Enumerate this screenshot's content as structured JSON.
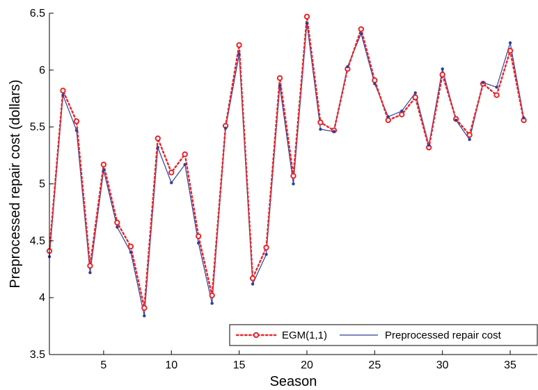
{
  "chart_data": {
    "type": "line",
    "title": "",
    "xlabel": "Season",
    "ylabel": "Preprocessed repair cost (dollars)",
    "xlim": [
      1,
      37
    ],
    "ylim": [
      3.5,
      6.5
    ],
    "xticks": [
      5,
      10,
      15,
      20,
      25,
      30,
      35
    ],
    "xtick_labels": [
      "5",
      "10",
      "15",
      "20",
      "25",
      "30",
      "35"
    ],
    "yticks": [
      3.5,
      4,
      4.5,
      5,
      5.5,
      6,
      6.5
    ],
    "ytick_labels": [
      "3.5",
      "4",
      "4.5",
      "5",
      "5.5",
      "6",
      "6.5"
    ],
    "grid": false,
    "legend_position": "bottom-right",
    "x": [
      1,
      2,
      3,
      4,
      5,
      6,
      7,
      8,
      9,
      10,
      11,
      12,
      13,
      14,
      15,
      16,
      17,
      18,
      19,
      20,
      21,
      22,
      23,
      24,
      25,
      26,
      27,
      28,
      29,
      30,
      31,
      32,
      33,
      34,
      35,
      36
    ],
    "series": [
      {
        "name": "EGM(1,1)",
        "color": "#e8262a",
        "style": "dotted-with-circle-markers",
        "values": [
          4.41,
          5.82,
          5.55,
          4.28,
          5.17,
          4.66,
          4.45,
          3.91,
          5.4,
          5.1,
          5.26,
          4.54,
          4.02,
          5.51,
          6.22,
          4.17,
          4.44,
          5.93,
          5.07,
          6.47,
          5.54,
          5.47,
          6.01,
          6.36,
          5.91,
          5.56,
          5.61,
          5.76,
          5.32,
          5.96,
          5.57,
          5.43,
          5.88,
          5.78,
          6.17,
          5.56
        ]
      },
      {
        "name": "Preprocessed repair cost",
        "color": "#2e3f9e",
        "style": "solid-with-dot-markers",
        "values": [
          4.36,
          5.78,
          5.47,
          4.22,
          5.12,
          4.62,
          4.4,
          3.84,
          5.32,
          5.01,
          5.17,
          4.48,
          3.95,
          5.49,
          6.14,
          4.12,
          4.38,
          5.86,
          5.0,
          6.41,
          5.48,
          5.46,
          6.03,
          6.32,
          5.88,
          5.59,
          5.64,
          5.8,
          5.34,
          6.01,
          5.56,
          5.39,
          5.89,
          5.85,
          6.24,
          5.58
        ]
      }
    ]
  }
}
